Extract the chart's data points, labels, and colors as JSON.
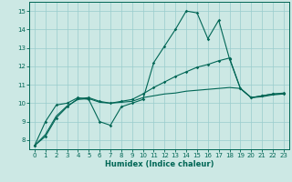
{
  "xlabel": "Humidex (Indice chaleur)",
  "bg_color": "#cce8e4",
  "grid_color": "#99cccc",
  "line_color": "#006655",
  "xlim": [
    -0.5,
    23.5
  ],
  "ylim": [
    7.5,
    15.5
  ],
  "yticks": [
    8,
    9,
    10,
    11,
    12,
    13,
    14,
    15
  ],
  "xticks": [
    0,
    1,
    2,
    3,
    4,
    5,
    6,
    7,
    8,
    9,
    10,
    11,
    12,
    13,
    14,
    15,
    16,
    17,
    18,
    19,
    20,
    21,
    22,
    23
  ],
  "line1_x": [
    0,
    1,
    2,
    3,
    4,
    5,
    6,
    7,
    8,
    9,
    10,
    11,
    12,
    13,
    14,
    15,
    16,
    17,
    18,
    19,
    20,
    21,
    22,
    23
  ],
  "line1_y": [
    7.7,
    9.0,
    9.9,
    10.0,
    10.3,
    10.2,
    9.0,
    8.8,
    9.8,
    10.0,
    10.2,
    12.2,
    13.1,
    14.0,
    15.0,
    14.9,
    13.5,
    14.5,
    12.4,
    10.8,
    10.3,
    10.4,
    10.5,
    10.5
  ],
  "line2_x": [
    0,
    1,
    2,
    3,
    4,
    5,
    6,
    7,
    8,
    9,
    10,
    11,
    12,
    13,
    14,
    15,
    16,
    17,
    18,
    19,
    20,
    21,
    22,
    23
  ],
  "line2_y": [
    7.7,
    8.2,
    9.2,
    9.8,
    10.25,
    10.3,
    10.1,
    10.0,
    10.1,
    10.2,
    10.5,
    10.85,
    11.15,
    11.45,
    11.7,
    11.95,
    12.1,
    12.3,
    12.45,
    10.8,
    10.3,
    10.4,
    10.5,
    10.55
  ],
  "line3_x": [
    0,
    1,
    2,
    3,
    4,
    5,
    6,
    7,
    8,
    9,
    10,
    11,
    12,
    13,
    14,
    15,
    16,
    17,
    18,
    19,
    20,
    21,
    22,
    23
  ],
  "line3_y": [
    7.7,
    8.3,
    9.3,
    9.85,
    10.2,
    10.25,
    10.05,
    10.0,
    10.05,
    10.1,
    10.3,
    10.4,
    10.5,
    10.55,
    10.65,
    10.7,
    10.75,
    10.8,
    10.85,
    10.8,
    10.3,
    10.35,
    10.45,
    10.5
  ]
}
